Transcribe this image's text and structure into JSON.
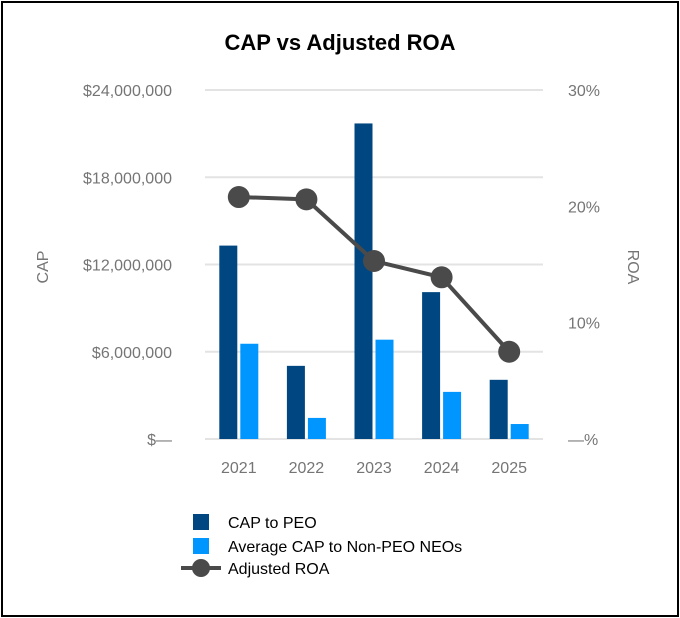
{
  "chart_data": {
    "type": "bar",
    "title": "CAP vs Adjusted ROA",
    "categories": [
      "2021",
      "2022",
      "2023",
      "2024",
      "2025"
    ],
    "ylabel": "CAP",
    "y2label": "ROA",
    "ylim": [
      0,
      24000000
    ],
    "y2lim": [
      0,
      30
    ],
    "yticks": [
      "$—",
      "$6,000,000",
      "$12,000,000",
      "$18,000,000",
      "$24,000,000"
    ],
    "y2ticks": [
      "—%",
      "10%",
      "20%",
      "30%"
    ],
    "grid": true,
    "legend_placement": "bottom",
    "series": [
      {
        "name": "CAP to PEO",
        "type": "bar",
        "axis": "left",
        "color": "#004680",
        "values": [
          13300000,
          5030000,
          21700000,
          10100000,
          4070000
        ]
      },
      {
        "name": "Average CAP to Non-PEO NEOs",
        "type": "bar",
        "axis": "left",
        "color": "#0096ff",
        "values": [
          6550000,
          1450000,
          6830000,
          3240000,
          1030000
        ]
      },
      {
        "name": "Adjusted ROA",
        "type": "line",
        "axis": "right",
        "color": "#4a4a4a",
        "values": [
          20.8,
          20.6,
          15.3,
          13.9,
          7.5
        ]
      }
    ]
  }
}
